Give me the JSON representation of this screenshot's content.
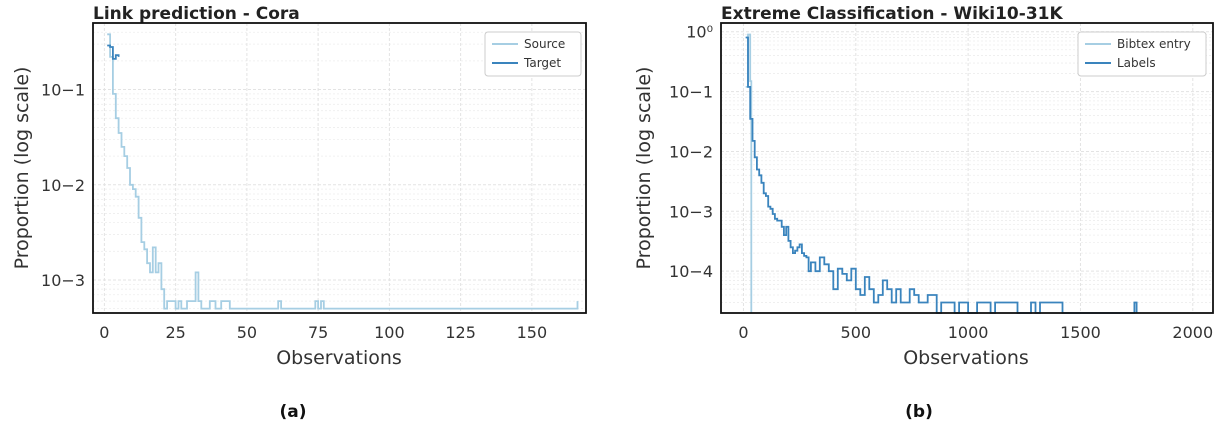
{
  "chart_data": [
    {
      "id": "a",
      "type": "line",
      "title": "Link prediction - Cora",
      "xlabel": "Observations",
      "ylabel": "Proportion (log scale)",
      "caption": "(a)",
      "log_scale_y": true,
      "grid": true,
      "legend_placement": "top-right",
      "xlim": [
        -4,
        169
      ],
      "ylim": [
        0.00045,
        0.5
      ],
      "xticks": [
        0,
        25,
        50,
        75,
        100,
        125,
        150
      ],
      "xtick_labels": [
        "0",
        "25",
        "50",
        "75",
        "100",
        "125",
        "150"
      ],
      "yticks": [
        0.001,
        0.01,
        0.1
      ],
      "ytick_labels": [
        "10−3",
        "10−2",
        "10−1"
      ],
      "series": [
        {
          "name": "Source",
          "color": "#a6cee3",
          "x": [
            1,
            2,
            3,
            4,
            5,
            6,
            7,
            8,
            9,
            10,
            11,
            12,
            13,
            14,
            15,
            16,
            17,
            18,
            19,
            20,
            21,
            22,
            23,
            24,
            25,
            26,
            27,
            28,
            29,
            30,
            31,
            32,
            33,
            34,
            35,
            36,
            37,
            38,
            39,
            40,
            41,
            42,
            43,
            44,
            60,
            61,
            62,
            74,
            75,
            76,
            77,
            165,
            166
          ],
          "y": [
            0.38,
            0.22,
            0.09,
            0.05,
            0.035,
            0.025,
            0.02,
            0.015,
            0.01,
            0.009,
            0.0075,
            0.0045,
            0.0025,
            0.0021,
            0.0015,
            0.0012,
            0.0022,
            0.0012,
            0.0015,
            0.0008,
            0.0005,
            0.0006,
            0.0006,
            0.0006,
            0.0005,
            0.0006,
            0.0005,
            0.0005,
            0.0006,
            0.0006,
            0.0006,
            0.0012,
            0.0006,
            0.0005,
            0.0005,
            0.0005,
            0.0006,
            0.0006,
            0.0005,
            0.0005,
            0.0006,
            0.0006,
            0.0006,
            0.0005,
            0.0005,
            0.0006,
            0.0005,
            0.0006,
            0.0005,
            0.0006,
            0.0005,
            0.0005,
            0.0006
          ]
        },
        {
          "name": "Target",
          "color": "#3a84bd",
          "x": [
            1,
            2,
            3,
            4,
            5
          ],
          "y": [
            0.29,
            0.28,
            0.21,
            0.23,
            0.22
          ]
        }
      ]
    },
    {
      "id": "b",
      "type": "line",
      "title": "Extreme Classification - Wiki10-31K",
      "xlabel": "Observations",
      "ylabel": "Proportion (log scale)",
      "caption": "(b)",
      "log_scale_y": true,
      "grid": true,
      "legend_placement": "top-right",
      "xlim": [
        -100,
        2090
      ],
      "ylim": [
        2e-05,
        1.4
      ],
      "xticks": [
        0,
        500,
        1000,
        1500,
        2000
      ],
      "xtick_labels": [
        "0",
        "500",
        "1000",
        "1500",
        "2000"
      ],
      "yticks": [
        0.0001,
        0.001,
        0.01,
        0.1,
        1
      ],
      "ytick_labels": [
        "10−4",
        "10−3",
        "10−2",
        "10−1",
        "10⁰"
      ],
      "series": [
        {
          "name": "Bibtex entry",
          "color": "#a6cee3",
          "x": [
            10,
            20,
            30,
            35
          ],
          "y": [
            0.12,
            0.9,
            0.15,
            2e-05
          ]
        },
        {
          "name": "Labels",
          "color": "#3a84bd",
          "x": [
            10,
            20,
            30,
            40,
            50,
            60,
            70,
            80,
            90,
            100,
            110,
            120,
            130,
            140,
            150,
            160,
            170,
            180,
            190,
            200,
            210,
            220,
            230,
            240,
            250,
            260,
            270,
            280,
            290,
            300,
            320,
            340,
            360,
            380,
            400,
            420,
            440,
            460,
            480,
            500,
            520,
            540,
            560,
            580,
            600,
            620,
            640,
            660,
            680,
            700,
            740,
            760,
            780,
            800,
            820,
            860,
            880,
            940,
            960,
            1000,
            1040,
            1080,
            1100,
            1120,
            1200,
            1220,
            1280,
            1300,
            1320,
            1400,
            1420,
            1740,
            1750
          ],
          "y": [
            0.8,
            0.12,
            0.035,
            0.015,
            0.008,
            0.005,
            0.004,
            0.003,
            0.002,
            0.0018,
            0.0012,
            0.0011,
            0.0009,
            0.00075,
            0.0007,
            0.0007,
            0.00055,
            0.0004,
            0.00055,
            0.00032,
            0.00025,
            0.0002,
            0.00022,
            0.00025,
            0.00028,
            0.0002,
            0.00018,
            0.00017,
            0.0001,
            0.00014,
            0.0001,
            0.00017,
            0.00013,
            0.0001,
            5e-05,
            0.00011,
            9e-05,
            7e-05,
            0.00011,
            5e-05,
            4e-05,
            8e-05,
            5e-05,
            3e-05,
            4e-05,
            7e-05,
            5e-05,
            3e-05,
            5e-05,
            3e-05,
            5e-05,
            4e-05,
            3e-05,
            3e-05,
            4e-05,
            2e-05,
            3e-05,
            2e-05,
            3e-05,
            2e-05,
            3e-05,
            3e-05,
            2e-05,
            3e-05,
            3e-05,
            2e-05,
            3e-05,
            2e-05,
            3e-05,
            3e-05,
            2e-05,
            3e-05,
            2e-05
          ]
        }
      ]
    }
  ]
}
